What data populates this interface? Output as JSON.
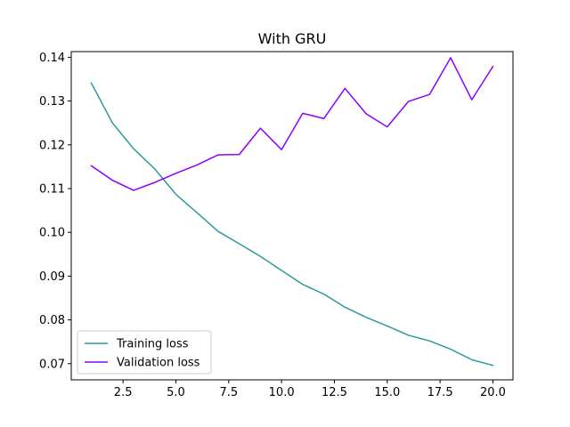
{
  "chart_data": {
    "type": "line",
    "title": "With GRU",
    "xlabel": "",
    "ylabel": "",
    "xlim": [
      0.05,
      20.95
    ],
    "ylim": [
      0.0663,
      0.1413
    ],
    "xticks": [
      2.5,
      5.0,
      7.5,
      10.0,
      12.5,
      15.0,
      17.5,
      20.0
    ],
    "xtick_labels": [
      "2.5",
      "5.0",
      "7.5",
      "10.0",
      "12.5",
      "15.0",
      "17.5",
      "20.0"
    ],
    "yticks": [
      0.07,
      0.08,
      0.09,
      0.1,
      0.11,
      0.12,
      0.13,
      0.14
    ],
    "ytick_labels": [
      "0.07",
      "0.08",
      "0.09",
      "0.10",
      "0.11",
      "0.12",
      "0.13",
      "0.14"
    ],
    "grid": false,
    "legend": "lower-left",
    "x": [
      1,
      2,
      3,
      4,
      5,
      6,
      7,
      8,
      9,
      10,
      11,
      12,
      13,
      14,
      15,
      16,
      17,
      18,
      19,
      20
    ],
    "series": [
      {
        "name": "Training loss",
        "color": "#2c9a9d",
        "values": [
          0.1341,
          0.125,
          0.1191,
          0.1145,
          0.1087,
          0.1045,
          0.1002,
          0.0974,
          0.0945,
          0.0913,
          0.0881,
          0.0859,
          0.0829,
          0.0806,
          0.0786,
          0.0765,
          0.0752,
          0.0733,
          0.0709,
          0.0696
        ]
      },
      {
        "name": "Validation loss",
        "color": "#8b00ff",
        "values": [
          0.1152,
          0.1119,
          0.1096,
          0.1114,
          0.1135,
          0.1154,
          0.1177,
          0.1178,
          0.1238,
          0.1189,
          0.1272,
          0.126,
          0.1329,
          0.1271,
          0.1241,
          0.1299,
          0.1315,
          0.1399,
          0.1303,
          0.1379
        ]
      }
    ]
  }
}
